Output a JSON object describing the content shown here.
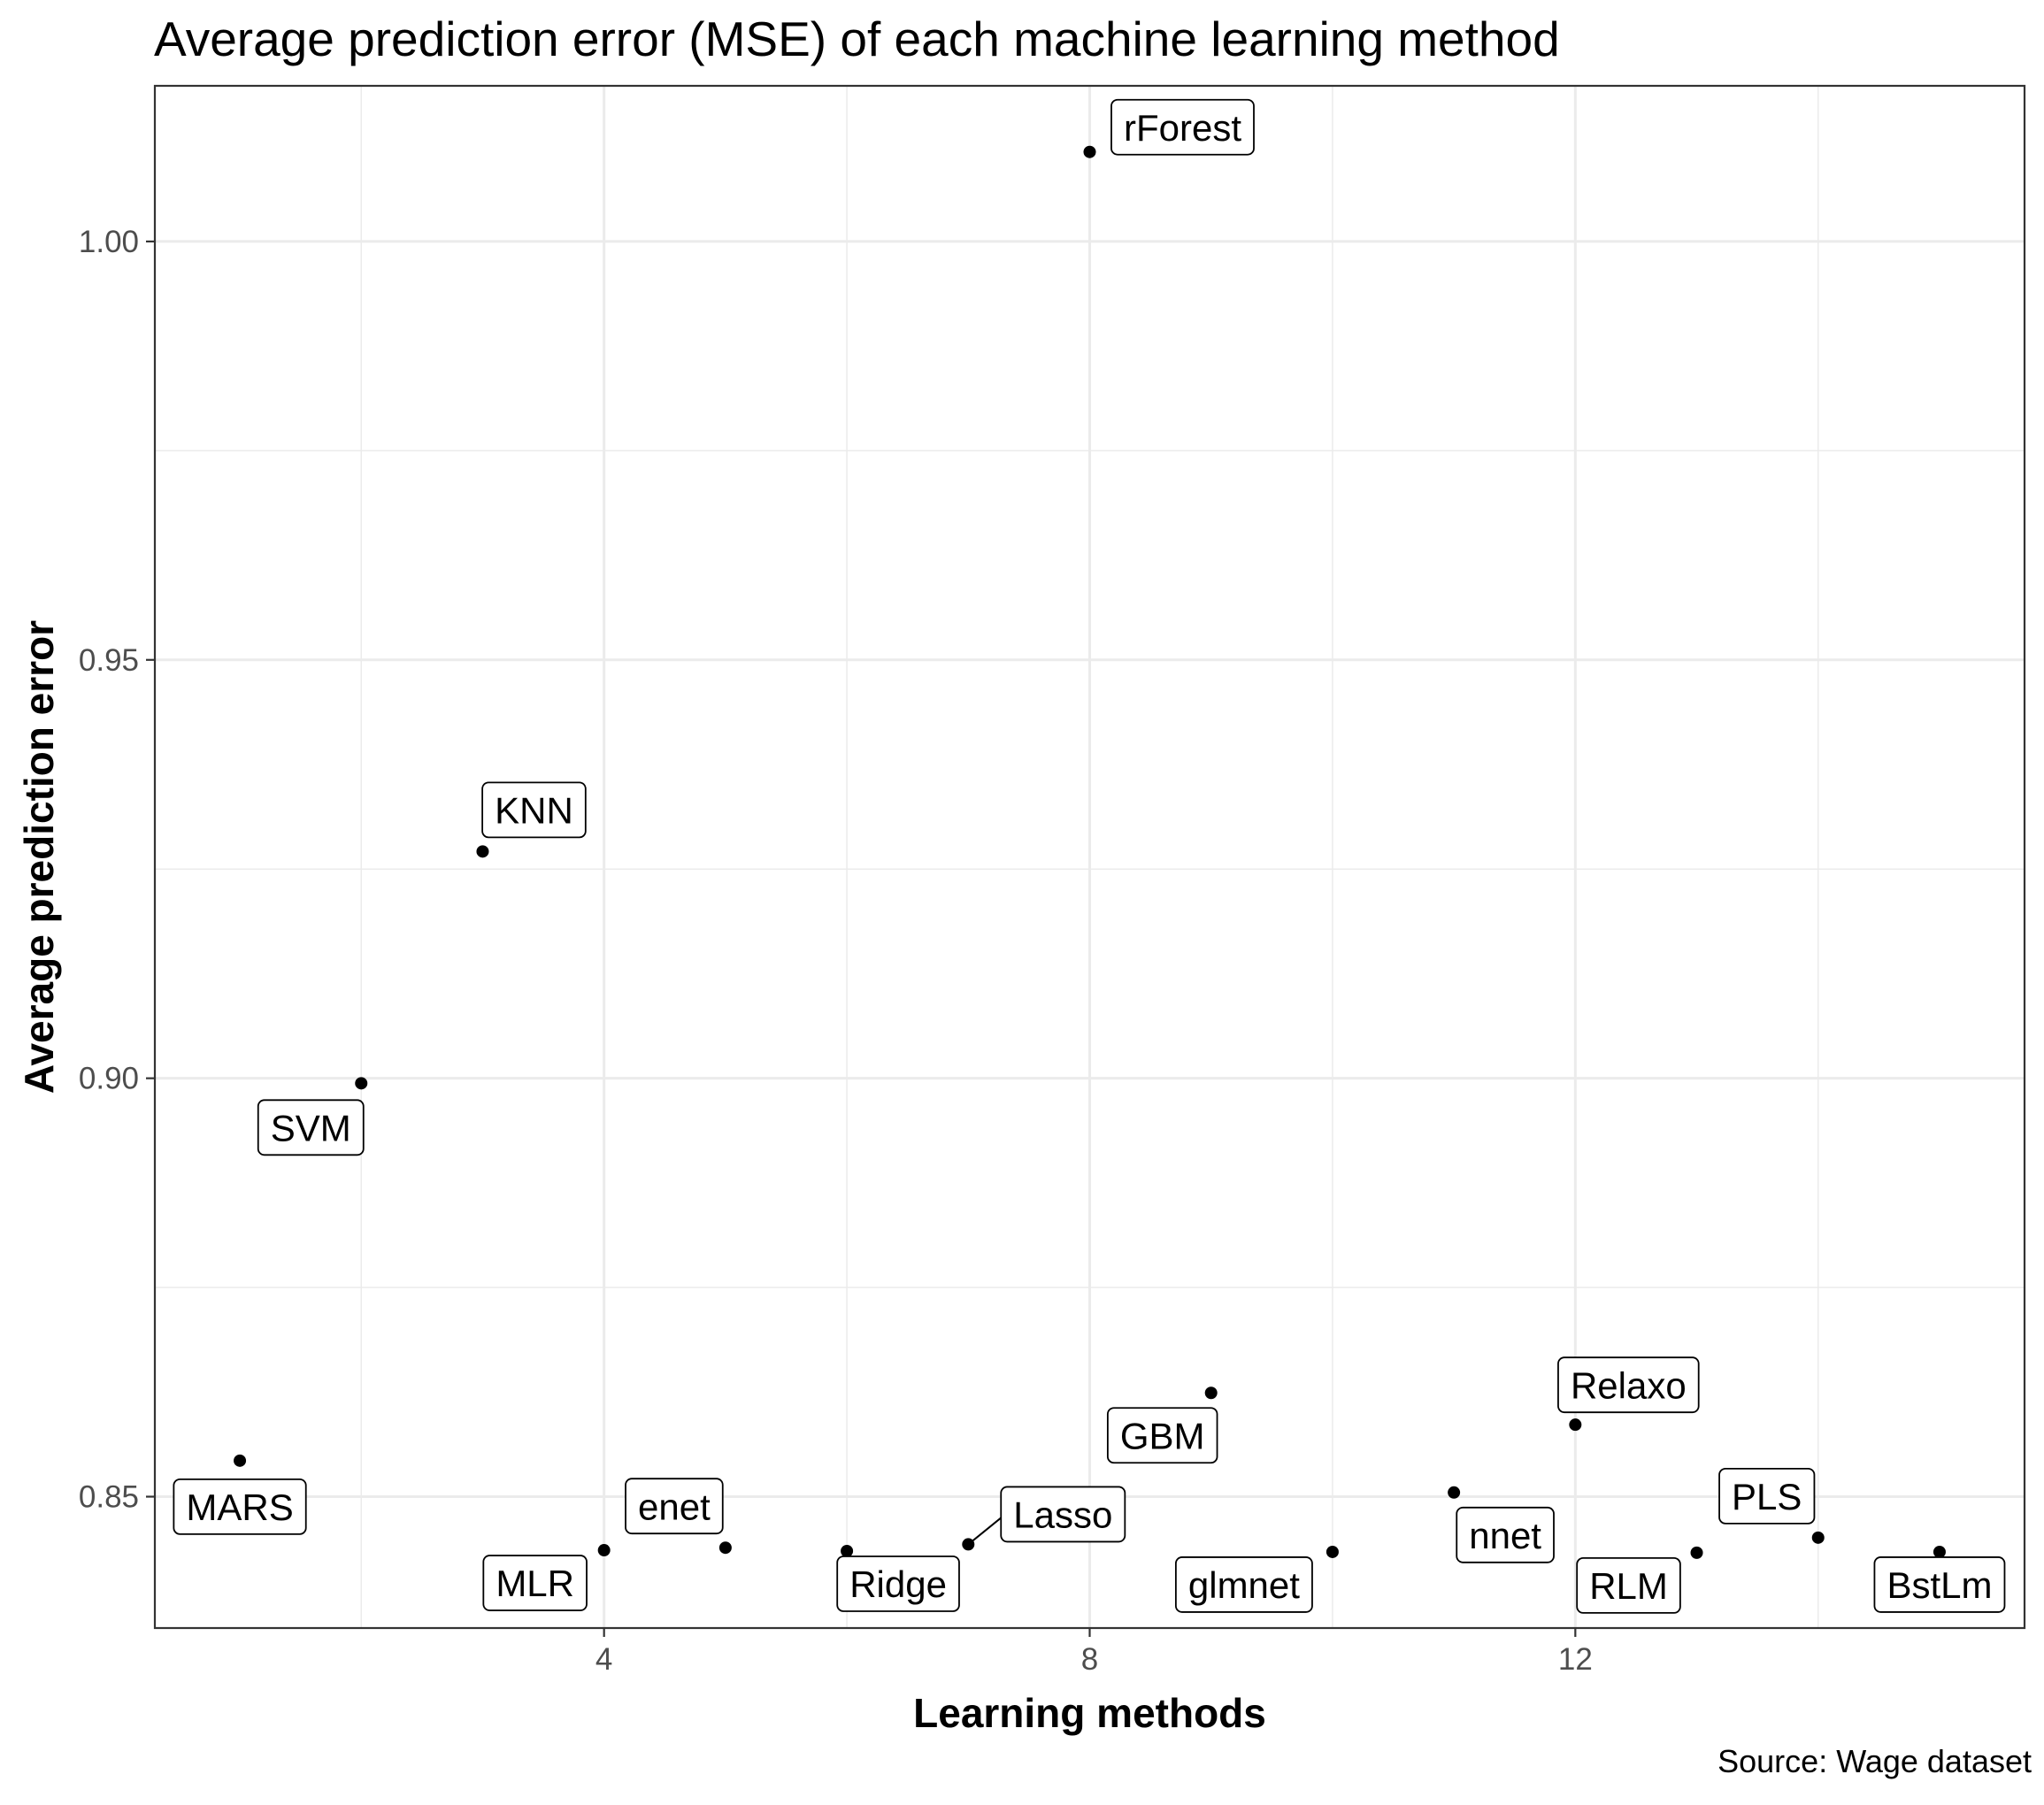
{
  "chart_data": {
    "type": "scatter",
    "title": "Average prediction error (MSE) of each machine learning method",
    "xlabel": "Learning methods",
    "ylabel": "Average prediction error",
    "caption": "Source: Wage dataset",
    "xlim": [
      0.3,
      15.7
    ],
    "ylim": [
      0.8343,
      1.0186
    ],
    "x_major_ticks": [
      4,
      8,
      12
    ],
    "x_tick_labels": [
      "4",
      "8",
      "12"
    ],
    "x_minor_ticks": [
      2,
      6,
      10,
      14
    ],
    "y_major_ticks": [
      0.85,
      0.9,
      0.95,
      1.0
    ],
    "y_tick_labels": [
      "0.85",
      "0.90",
      "0.95",
      "1.00"
    ],
    "y_minor_ticks": [
      0.875,
      0.925,
      0.975
    ],
    "grid": true,
    "points": [
      {
        "x": 1,
        "y": 0.8543,
        "label": "MARS"
      },
      {
        "x": 2,
        "y": 0.8994,
        "label": "SVM"
      },
      {
        "x": 3,
        "y": 0.9271,
        "label": "KNN"
      },
      {
        "x": 4,
        "y": 0.8436,
        "label": "MLR"
      },
      {
        "x": 5,
        "y": 0.8439,
        "label": "enet"
      },
      {
        "x": 6,
        "y": 0.8435,
        "label": "Ridge"
      },
      {
        "x": 7,
        "y": 0.8443,
        "label": "Lasso"
      },
      {
        "x": 8,
        "y": 1.0107,
        "label": "rForest"
      },
      {
        "x": 9,
        "y": 0.8624,
        "label": "GBM"
      },
      {
        "x": 10,
        "y": 0.8434,
        "label": "glmnet"
      },
      {
        "x": 11,
        "y": 0.8505,
        "label": "nnet"
      },
      {
        "x": 12,
        "y": 0.8586,
        "label": "Relaxo"
      },
      {
        "x": 13,
        "y": 0.8433,
        "label": "RLM"
      },
      {
        "x": 14,
        "y": 0.8451,
        "label": "PLS"
      },
      {
        "x": 15,
        "y": 0.8434,
        "label": "BstLm"
      }
    ]
  }
}
